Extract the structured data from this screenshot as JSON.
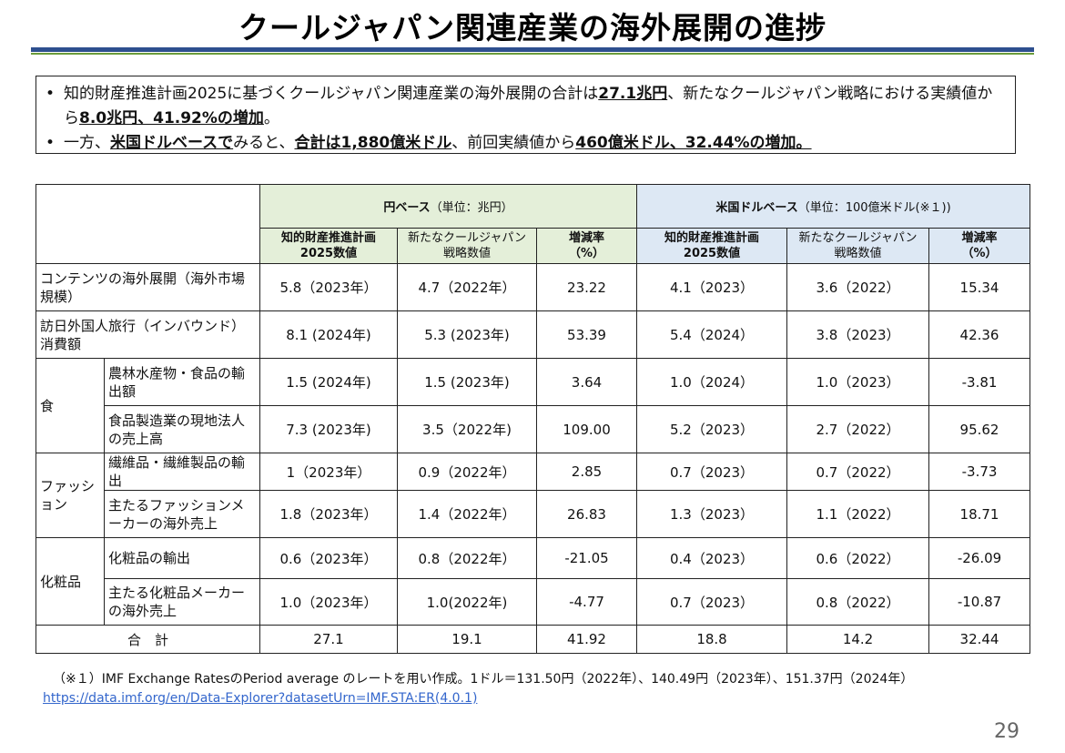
{
  "title": "クールジャパン関連産業の海外展開の進捗",
  "summary": {
    "line1_a": "知的財産推進計画2025に基づくクールジャパン関連産業の海外展開の合計は",
    "line1_b": "27.1兆円",
    "line1_c": "、新たなクールジャパン戦略にお",
    "line1_d": "ける実績値から",
    "line1_e": "8.0兆円、41.92%の増加",
    "line1_f": "。",
    "line2_a": "一方、",
    "line2_b": "米国ドルベースで",
    "line2_c": "みると、",
    "line2_d": "合計は1,880億米ドル",
    "line2_e": "、前回実績値から",
    "line2_f": "460億米ドル、32.44%の増加。"
  },
  "table": {
    "yen_group": "円ベース",
    "yen_unit": "（単位：兆円）",
    "usd_group": "米国ドルベース",
    "usd_unit": "（単位：100億米ドル(※１))",
    "sub_headers": {
      "ip_plan_1": "知的財産推進計画",
      "ip_plan_2": "2025数値",
      "cj_1": "新たなクールジャパン",
      "cj_2": "戦略数値",
      "rate_1": "増減率",
      "rate_2": "（%）"
    },
    "rows": [
      {
        "cat": "",
        "label": "コンテンツの海外展開（海外市場規模）",
        "y1": "5.8（2023年）",
        "y2": "4.7（2022年）",
        "y3": "23.22",
        "u1": "4.1（2023）",
        "u2": "3.6（2022）",
        "u3": "15.34"
      },
      {
        "cat": "",
        "label": "訪日外国人旅行（インバウンド）消費額",
        "y1": "8.1 (2024年)",
        "y2": "5.3 (2023年)",
        "y3": "53.39",
        "u1": "5.4（2024）",
        "u2": "3.8（2023）",
        "u3": "42.36"
      },
      {
        "cat": "食",
        "label": "農林水産物・食品の輸出額",
        "y1": "1.5 (2024年)",
        "y2": "1.5 (2023年)",
        "y3": "3.64",
        "u1": "1.0（2024）",
        "u2": "1.0（2023）",
        "u3": "-3.81"
      },
      {
        "cat": "",
        "label": "食品製造業の現地法人の売上高",
        "y1": "7.3 (2023年)",
        "y2": "3.5（2022年)",
        "y3": "109.00",
        "u1": "5.2（2023）",
        "u2": "2.7（2022）",
        "u3": "95.62"
      },
      {
        "cat": "ファッション",
        "label": "繊維品・繊維製品の輸出",
        "y1": "1（2023年）",
        "y2": "0.9（2022年）",
        "y3": "2.85",
        "u1": "0.7（2023）",
        "u2": "0.7（2022）",
        "u3": "-3.73"
      },
      {
        "cat": "",
        "label": "主たるファッションメーカーの海外売上",
        "y1": "1.8（2023年）",
        "y2": "1.4（2022年）",
        "y3": "26.83",
        "u1": "1.3（2023）",
        "u2": "1.1（2022）",
        "u3": "18.71"
      },
      {
        "cat": "化粧品",
        "label": "化粧品の輸出",
        "y1": "0.6（2023年）",
        "y2": "0.8（2022年）",
        "y3": "-21.05",
        "u1": "0.4（2023）",
        "u2": "0.6（2022）",
        "u3": "-26.09"
      },
      {
        "cat": "",
        "label": "主たる化粧品メーカーの海外売上",
        "y1": "1.0（2023年）",
        "y2": "1.0(2022年)",
        "y3": "-4.77",
        "u1": "0.7（2023）",
        "u2": "0.8（2022）",
        "u3": "-10.87"
      }
    ],
    "total": {
      "label": "合　計",
      "y1": "27.1",
      "y2": "19.1",
      "y3": "41.92",
      "u1": "18.8",
      "u2": "14.2",
      "u3": "32.44"
    }
  },
  "footnote": "（※１）IMF Exchange RatesのPeriod average のレートを用い作成。1ドル＝131.50円（2022年）、140.49円（2023年）、151.37円（2024年）",
  "footnote_link": "https://data.imf.org/en/Data-Explorer?datasetUrn=IMF.STA:ER(4.0.1)",
  "page_number": "29"
}
